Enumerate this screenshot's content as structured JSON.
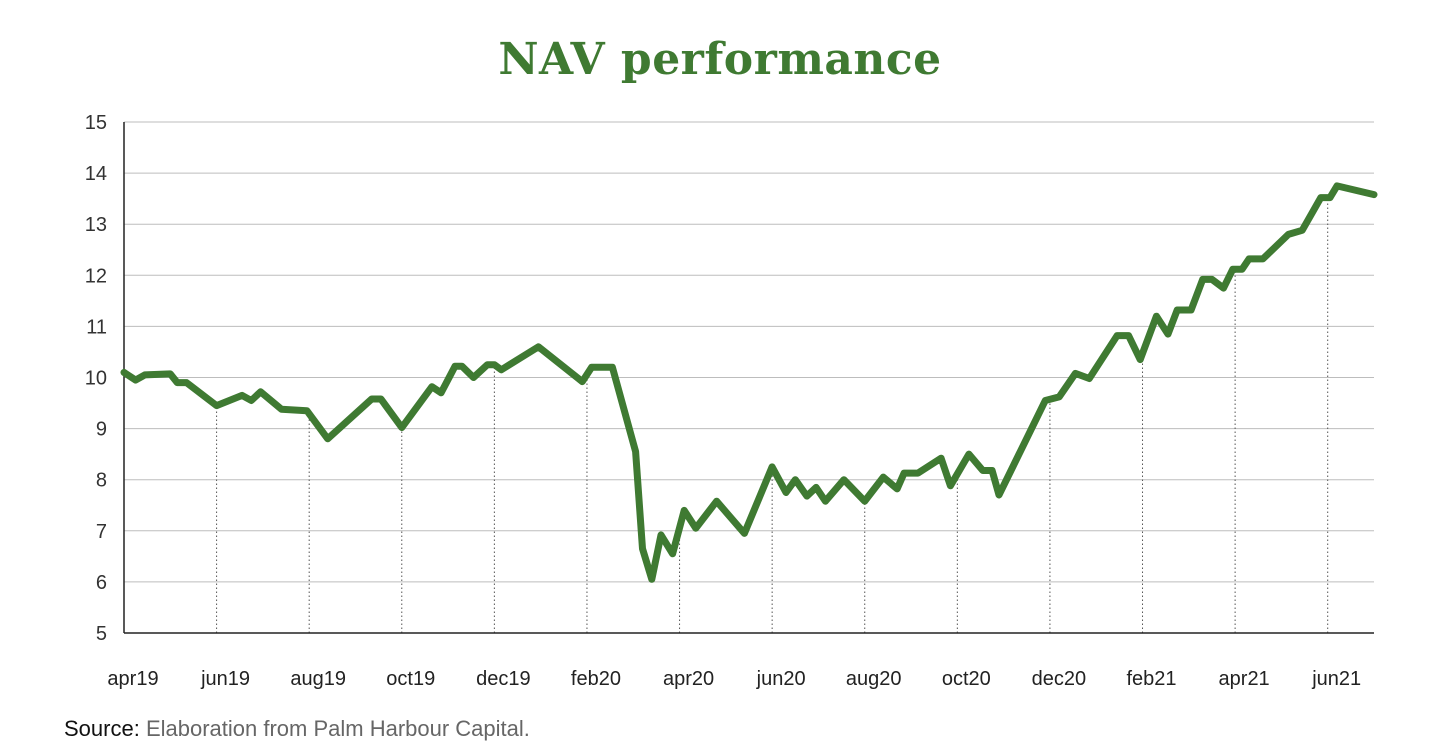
{
  "chart_data": {
    "type": "line",
    "title": "NAV performance",
    "ylim": [
      5,
      15
    ],
    "yticks": [
      5,
      6,
      7,
      8,
      9,
      10,
      11,
      12,
      13,
      14,
      15
    ],
    "xticks": [
      "apr19",
      "jun19",
      "aug19",
      "oct19",
      "dec19",
      "feb20",
      "apr20",
      "jun20",
      "aug20",
      "oct20",
      "dec20",
      "feb21",
      "apr21",
      "jun21"
    ],
    "xlim": [
      0,
      27
    ],
    "grid": "horizontal",
    "legend": "none",
    "series": [
      {
        "color": "#3f7a32",
        "points": [
          [
            0.0,
            10.1
          ],
          [
            0.25,
            9.95
          ],
          [
            0.45,
            10.05
          ],
          [
            1.0,
            10.07
          ],
          [
            1.15,
            9.9
          ],
          [
            1.35,
            9.9
          ],
          [
            2.0,
            9.45
          ],
          [
            2.55,
            9.65
          ],
          [
            2.75,
            9.55
          ],
          [
            2.95,
            9.72
          ],
          [
            3.4,
            9.38
          ],
          [
            3.95,
            9.35
          ],
          [
            4.4,
            8.8
          ],
          [
            5.35,
            9.58
          ],
          [
            5.55,
            9.58
          ],
          [
            6.0,
            9.02
          ],
          [
            6.65,
            9.82
          ],
          [
            6.85,
            9.7
          ],
          [
            7.15,
            10.22
          ],
          [
            7.3,
            10.22
          ],
          [
            7.55,
            10.0
          ],
          [
            7.85,
            10.25
          ],
          [
            8.0,
            10.25
          ],
          [
            8.15,
            10.15
          ],
          [
            8.95,
            10.6
          ],
          [
            9.9,
            9.92
          ],
          [
            10.1,
            10.2
          ],
          [
            10.55,
            10.2
          ],
          [
            11.05,
            8.55
          ],
          [
            11.2,
            6.65
          ],
          [
            11.4,
            6.05
          ],
          [
            11.6,
            6.92
          ],
          [
            11.85,
            6.55
          ],
          [
            12.1,
            7.4
          ],
          [
            12.35,
            7.05
          ],
          [
            12.8,
            7.58
          ],
          [
            13.4,
            6.95
          ],
          [
            14.0,
            8.25
          ],
          [
            14.3,
            7.75
          ],
          [
            14.5,
            8.0
          ],
          [
            14.75,
            7.68
          ],
          [
            14.95,
            7.85
          ],
          [
            15.15,
            7.58
          ],
          [
            15.55,
            8.0
          ],
          [
            16.0,
            7.58
          ],
          [
            16.4,
            8.05
          ],
          [
            16.7,
            7.82
          ],
          [
            16.85,
            8.13
          ],
          [
            17.15,
            8.13
          ],
          [
            17.65,
            8.42
          ],
          [
            17.85,
            7.88
          ],
          [
            18.25,
            8.5
          ],
          [
            18.55,
            8.18
          ],
          [
            18.75,
            8.18
          ],
          [
            18.9,
            7.7
          ],
          [
            19.9,
            9.55
          ],
          [
            20.2,
            9.62
          ],
          [
            20.55,
            10.08
          ],
          [
            20.85,
            9.98
          ],
          [
            21.45,
            10.82
          ],
          [
            21.7,
            10.82
          ],
          [
            21.95,
            10.35
          ],
          [
            22.3,
            11.2
          ],
          [
            22.55,
            10.85
          ],
          [
            22.75,
            11.32
          ],
          [
            23.05,
            11.32
          ],
          [
            23.3,
            11.92
          ],
          [
            23.5,
            11.92
          ],
          [
            23.75,
            11.75
          ],
          [
            23.95,
            12.12
          ],
          [
            24.15,
            12.12
          ],
          [
            24.3,
            12.32
          ],
          [
            24.6,
            12.32
          ],
          [
            25.15,
            12.8
          ],
          [
            25.45,
            12.88
          ],
          [
            25.85,
            13.52
          ],
          [
            26.05,
            13.52
          ],
          [
            26.2,
            13.75
          ],
          [
            27.0,
            13.58
          ]
        ]
      }
    ]
  },
  "source": {
    "label": "Source:",
    "text": " Elaboration from Palm Harbour Capital."
  }
}
